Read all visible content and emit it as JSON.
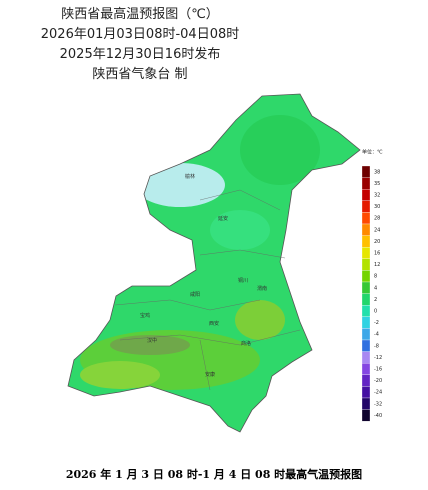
{
  "header": {
    "title": "陕西省最高温预报图（℃）",
    "period": "2026年01月03日08时-04日08时",
    "issued": "2025年12月30日16时发布",
    "publisher": "陕西省气象台 制"
  },
  "legend": {
    "title": "单位：℃",
    "items": [
      {
        "value": 38,
        "color": "#6e0000"
      },
      {
        "value": 35,
        "color": "#9a0000"
      },
      {
        "value": 32,
        "color": "#c40000"
      },
      {
        "value": 30,
        "color": "#e41a00"
      },
      {
        "value": 28,
        "color": "#ff4a00"
      },
      {
        "value": 24,
        "color": "#ff8a00"
      },
      {
        "value": 20,
        "color": "#ffc000"
      },
      {
        "value": 16,
        "color": "#e6e600"
      },
      {
        "value": 12,
        "color": "#b2e200"
      },
      {
        "value": 8,
        "color": "#74d400"
      },
      {
        "value": 4,
        "color": "#36c836"
      },
      {
        "value": 2,
        "color": "#22d66c"
      },
      {
        "value": 0,
        "color": "#22e0ac"
      },
      {
        "value": -2,
        "color": "#30d2e2"
      },
      {
        "value": -4,
        "color": "#3ea8e8"
      },
      {
        "value": -8,
        "color": "#3070e0"
      },
      {
        "value": -12,
        "color": "#a888f2"
      },
      {
        "value": -16,
        "color": "#8446e2"
      },
      {
        "value": -20,
        "color": "#6224c4"
      },
      {
        "value": -24,
        "color": "#4410a2"
      },
      {
        "value": -32,
        "color": "#220668"
      },
      {
        "value": -40,
        "color": "#10042e"
      }
    ]
  },
  "cities": [
    "榆林",
    "延安",
    "铜川",
    "渭南",
    "咸阳",
    "宝鸡",
    "西安",
    "商洛",
    "汉中",
    "安康"
  ],
  "caption": "2026 年 1 月 3 日 08 时-1 月 4 日 08 时最高气温预报图"
}
